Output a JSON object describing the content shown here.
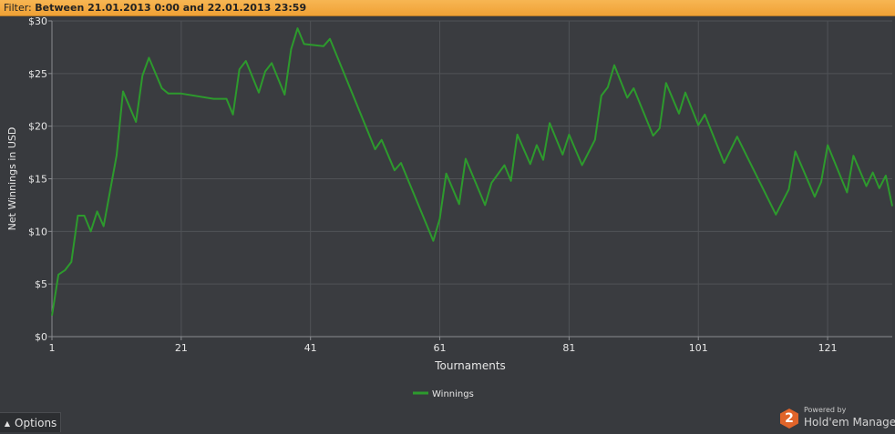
{
  "filter": {
    "label": "Filter:",
    "value": "Between 21.01.2013 0:00 and 22.01.2013 23:59"
  },
  "options_button": {
    "label": "Options",
    "icon": "chevron-up-icon"
  },
  "brand": {
    "powered": "Powered by",
    "name": "Hold'em Manager",
    "badge": "2"
  },
  "colors": {
    "line": "#2d9a2d",
    "background": "#383a3e",
    "grid": "#505357",
    "text": "#e6e6e6",
    "filter_bar": "#f2a63c"
  },
  "chart_data": {
    "type": "line",
    "title": "",
    "xlabel": "Tournaments",
    "ylabel": "Net Winnings in USD",
    "xlim": [
      1,
      131
    ],
    "ylim": [
      0,
      30
    ],
    "x_ticks": [
      1,
      21,
      41,
      61,
      81,
      101,
      121
    ],
    "y_ticks": [
      0,
      5,
      10,
      15,
      20,
      25,
      30
    ],
    "y_tick_labels": [
      "$0",
      "$5",
      "$10",
      "$15",
      "$20",
      "$25",
      "$30"
    ],
    "grid": true,
    "legend_position": "bottom-center",
    "series": [
      {
        "name": "Winnings",
        "color": "#2d9a2d",
        "points": [
          [
            1,
            2
          ],
          [
            2,
            5.9
          ],
          [
            3,
            6.3
          ],
          [
            4,
            7.1
          ],
          [
            5,
            11.5
          ],
          [
            6,
            11.5
          ],
          [
            7,
            10
          ],
          [
            8,
            11.9
          ],
          [
            9,
            10.5
          ],
          [
            11,
            17.2
          ],
          [
            12,
            23.3
          ],
          [
            14,
            20.4
          ],
          [
            15,
            24.8
          ],
          [
            16,
            26.5
          ],
          [
            18,
            23.6
          ],
          [
            19,
            23.1
          ],
          [
            21,
            23.1
          ],
          [
            26,
            22.6
          ],
          [
            28,
            22.6
          ],
          [
            29,
            21.1
          ],
          [
            30,
            25.4
          ],
          [
            31,
            26.2
          ],
          [
            33,
            23.2
          ],
          [
            34,
            25.2
          ],
          [
            35,
            26
          ],
          [
            37,
            23
          ],
          [
            38,
            27.3
          ],
          [
            39,
            29.3
          ],
          [
            40,
            27.8
          ],
          [
            43,
            27.6
          ],
          [
            44,
            28.3
          ],
          [
            51,
            17.8
          ],
          [
            52,
            18.7
          ],
          [
            54,
            15.8
          ],
          [
            55,
            16.5
          ],
          [
            60,
            9.1
          ],
          [
            61,
            11.2
          ],
          [
            62,
            15.5
          ],
          [
            64,
            12.6
          ],
          [
            65,
            16.9
          ],
          [
            68,
            12.5
          ],
          [
            69,
            14.6
          ],
          [
            71,
            16.3
          ],
          [
            72,
            14.8
          ],
          [
            73,
            19.2
          ],
          [
            75,
            16.4
          ],
          [
            76,
            18.2
          ],
          [
            77,
            16.8
          ],
          [
            78,
            20.3
          ],
          [
            80,
            17.3
          ],
          [
            81,
            19.2
          ],
          [
            83,
            16.3
          ],
          [
            85,
            18.7
          ],
          [
            86,
            22.9
          ],
          [
            87,
            23.7
          ],
          [
            88,
            25.8
          ],
          [
            90,
            22.7
          ],
          [
            91,
            23.6
          ],
          [
            94,
            19.1
          ],
          [
            95,
            19.8
          ],
          [
            96,
            24.1
          ],
          [
            98,
            21.2
          ],
          [
            99,
            23.2
          ],
          [
            101,
            20.1
          ],
          [
            102,
            21.1
          ],
          [
            105,
            16.5
          ],
          [
            107,
            19
          ],
          [
            113,
            11.6
          ],
          [
            115,
            14
          ],
          [
            116,
            17.6
          ],
          [
            119,
            13.3
          ],
          [
            120,
            14.7
          ],
          [
            121,
            18.2
          ],
          [
            124,
            13.7
          ],
          [
            125,
            17.2
          ],
          [
            127,
            14.3
          ],
          [
            128,
            15.6
          ],
          [
            129,
            14.1
          ],
          [
            130,
            15.3
          ],
          [
            131,
            12.4
          ]
        ]
      }
    ]
  }
}
